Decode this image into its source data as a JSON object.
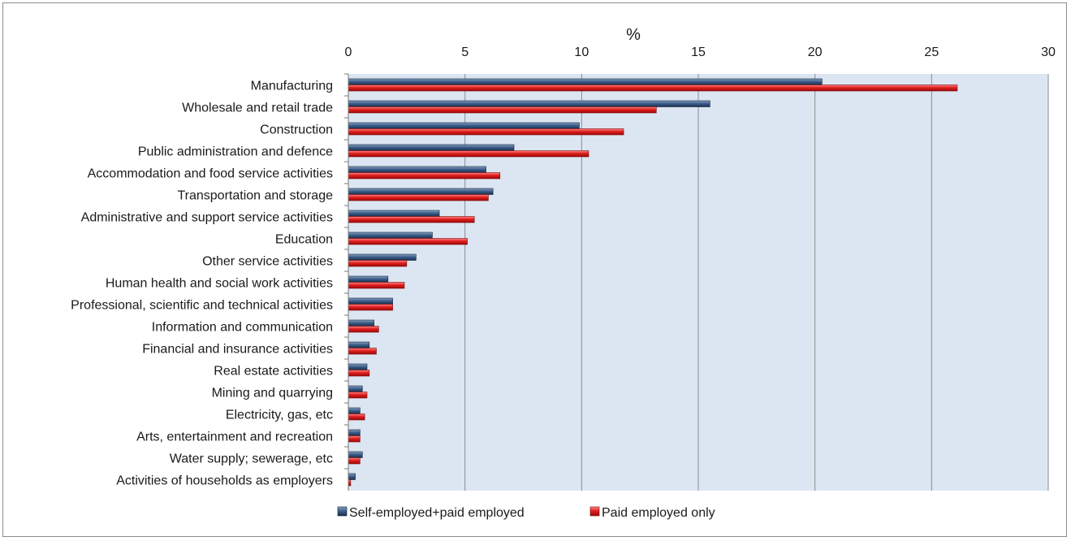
{
  "chart_data": {
    "type": "bar",
    "orientation": "horizontal",
    "xlabel": "%",
    "xlim": [
      0,
      30
    ],
    "xticks": [
      0,
      5,
      10,
      15,
      20,
      25,
      30
    ],
    "x_axis_position": "top",
    "grid": "vertical",
    "plot_background": "#dce6f2",
    "legend_position": "bottom",
    "categories": [
      "Manufacturing",
      "Wholesale and retail trade",
      "Construction",
      "Public administration and defence",
      "Accommodation and food service activities",
      "Transportation and storage",
      "Administrative and support service activities",
      "Education",
      "Other service activities",
      "Human health and social work activities",
      "Professional, scientific and technical activities",
      "Information and communication",
      "Financial and insurance activities",
      "Real estate activities",
      "Mining and quarrying",
      "Electricity, gas, etc",
      "Arts, entertainment and recreation",
      "Water supply; sewerage, etc",
      "Activities of households as employers"
    ],
    "series": [
      {
        "name": "Self-employed+paid employed",
        "color": "#1f3a5f",
        "values": [
          20.3,
          15.5,
          9.9,
          7.1,
          5.9,
          6.2,
          3.9,
          3.6,
          2.9,
          1.7,
          1.9,
          1.1,
          0.9,
          0.8,
          0.6,
          0.5,
          0.5,
          0.6,
          0.3
        ]
      },
      {
        "name": "Paid employed only",
        "color": "#d41414",
        "values": [
          26.1,
          13.2,
          11.8,
          10.3,
          6.5,
          6.0,
          5.4,
          5.1,
          2.5,
          2.4,
          1.9,
          1.3,
          1.2,
          0.9,
          0.8,
          0.7,
          0.5,
          0.5,
          0.1
        ]
      }
    ]
  }
}
